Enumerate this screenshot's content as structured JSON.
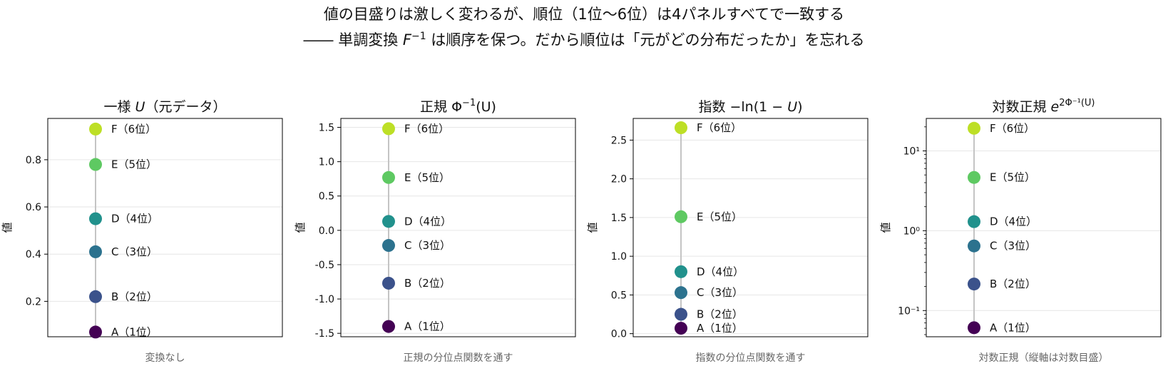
{
  "title_line1": "値の目盛りは激しく変わるが、順位（1位〜6位）は4パネルすべてで一致する",
  "title_line2_pre": "―― 単調変換 ",
  "title_line2_math": "F",
  "title_line2_sup": "−1",
  "title_line2_post": " は順序を保つ。だから順位は「元がどの分布だったか」を忘れる",
  "colors": {
    "points": [
      "#440154",
      "#3b528b",
      "#2c728e",
      "#21918c",
      "#5ec962",
      "#bddf26"
    ],
    "connector": "#c4c4c4",
    "grid": "#e6e6e6",
    "axis": "#000000"
  },
  "chart_data": [
    {
      "type": "scatter",
      "title": {
        "pre": "一様 ",
        "math": "U",
        "sup": "",
        "post": "（元データ）"
      },
      "ylabel": "値",
      "xlabel": "変換なし",
      "yscale": "linear",
      "ylim": [
        0.05,
        0.975
      ],
      "yticks": [
        0.2,
        0.4,
        0.6,
        0.8
      ],
      "yticklabels": [
        "0.2",
        "0.4",
        "0.6",
        "0.8"
      ],
      "grid": true,
      "points": [
        {
          "label": "A（1位）",
          "value": 0.07
        },
        {
          "label": "B（2位）",
          "value": 0.22
        },
        {
          "label": "C（3位）",
          "value": 0.41
        },
        {
          "label": "D（4位）",
          "value": 0.55
        },
        {
          "label": "E（5位）",
          "value": 0.78
        },
        {
          "label": "F（6位）",
          "value": 0.93
        }
      ]
    },
    {
      "type": "scatter",
      "title": {
        "pre": "正規 Φ",
        "math": "",
        "sup": "−1",
        "post": "(U)"
      },
      "ylabel": "値",
      "xlabel": "正規の分位点関数を通す",
      "yscale": "linear",
      "ylim": [
        -1.55,
        1.63
      ],
      "yticks": [
        -1.5,
        -1.0,
        -0.5,
        0.0,
        0.5,
        1.0,
        1.5
      ],
      "yticklabels": [
        "-1.5",
        "-1.0",
        "-0.5",
        "0.0",
        "0.5",
        "1.0",
        "1.5"
      ],
      "grid": true,
      "points": [
        {
          "label": "A（1位）",
          "value": -1.4
        },
        {
          "label": "B（2位）",
          "value": -0.77
        },
        {
          "label": "C（3位）",
          "value": -0.22
        },
        {
          "label": "D（4位）",
          "value": 0.13
        },
        {
          "label": "E（5位）",
          "value": 0.77
        },
        {
          "label": "F（6位）",
          "value": 1.48
        }
      ]
    },
    {
      "type": "scatter",
      "title": {
        "pre": "指数 −ln(1 − ",
        "math": "U",
        "sup": "",
        "post": ")"
      },
      "ylabel": "値",
      "xlabel": "指数の分位点関数を通す",
      "yscale": "linear",
      "ylim": [
        -0.04,
        2.78
      ],
      "yticks": [
        0.0,
        0.5,
        1.0,
        1.5,
        2.0,
        2.5
      ],
      "yticklabels": [
        "0.0",
        "0.5",
        "1.0",
        "1.5",
        "2.0",
        "2.5"
      ],
      "grid": true,
      "points": [
        {
          "label": "A（1位）",
          "value": 0.07
        },
        {
          "label": "B（2位）",
          "value": 0.25
        },
        {
          "label": "C（3位）",
          "value": 0.53
        },
        {
          "label": "D（4位）",
          "value": 0.8
        },
        {
          "label": "E（5位）",
          "value": 1.51
        },
        {
          "label": "F（6位）",
          "value": 2.66
        }
      ]
    },
    {
      "type": "scatter",
      "title": {
        "pre": "対数正規 ",
        "math": "e",
        "sup": "2Φ⁻¹(U)",
        "post": ""
      },
      "ylabel": "値",
      "xlabel": "対数正規（縦軸は対数目盛）",
      "yscale": "log",
      "ylim": [
        0.047,
        25.5
      ],
      "yticks": [
        0.1,
        1,
        10
      ],
      "yticklabels": [
        "10⁻¹",
        "10⁰",
        "10¹"
      ],
      "grid": true,
      "points": [
        {
          "label": "A（1位）",
          "value": 0.061
        },
        {
          "label": "B（2位）",
          "value": 0.215
        },
        {
          "label": "C（3位）",
          "value": 0.645
        },
        {
          "label": "D（4位）",
          "value": 1.3
        },
        {
          "label": "E（5位）",
          "value": 4.65
        },
        {
          "label": "F（6位）",
          "value": 19.2
        }
      ]
    }
  ]
}
